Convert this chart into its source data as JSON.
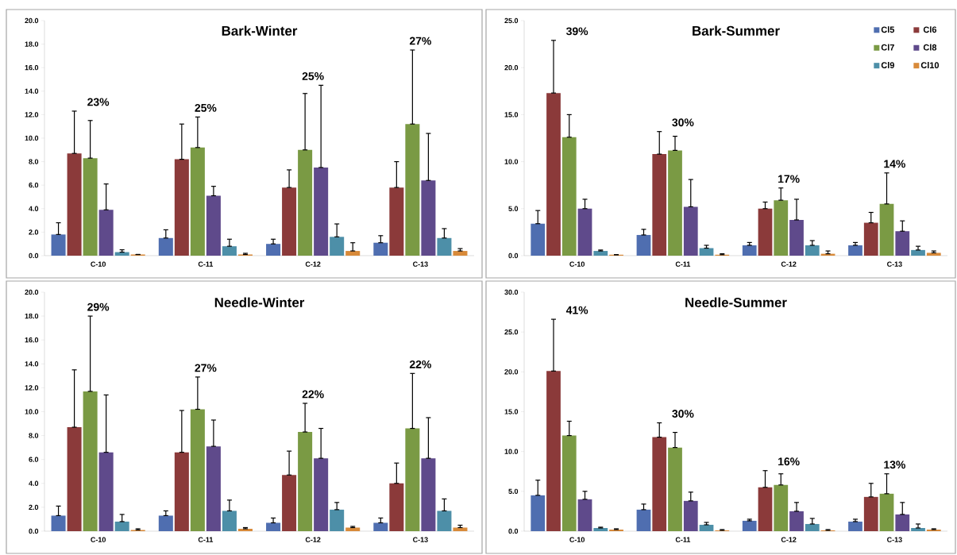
{
  "chart_data": [
    {
      "type": "bar",
      "title": "Bark-Winter",
      "categories": [
        "C-10",
        "C-11",
        "C-12",
        "C-13"
      ],
      "series": [
        {
          "color": "#4f6eb0",
          "values": [
            1.8,
            1.5,
            1.0,
            1.1
          ],
          "errors": [
            [
              1.8,
              2.8
            ],
            [
              1.5,
              2.2
            ],
            [
              1.0,
              1.4
            ],
            [
              1.1,
              1.7
            ]
          ]
        },
        {
          "color": "#8b3a3a",
          "values": [
            8.7,
            8.2,
            5.8,
            5.8
          ],
          "errors": [
            [
              8.7,
              12.3
            ],
            [
              8.2,
              11.2
            ],
            [
              5.8,
              7.3
            ],
            [
              5.8,
              8.0
            ]
          ]
        },
        {
          "color": "#7a9a44",
          "values": [
            8.3,
            9.2,
            9.0,
            11.2
          ],
          "errors": [
            [
              8.3,
              11.5
            ],
            [
              9.2,
              11.8
            ],
            [
              9.0,
              13.8
            ],
            [
              11.2,
              17.5
            ]
          ]
        },
        {
          "color": "#5f4a8b",
          "values": [
            3.9,
            5.1,
            7.5,
            6.4
          ],
          "errors": [
            [
              3.9,
              6.1
            ],
            [
              5.1,
              5.9
            ],
            [
              7.5,
              14.5
            ],
            [
              6.4,
              10.4
            ]
          ]
        },
        {
          "color": "#4d8fa8",
          "values": [
            0.3,
            0.8,
            1.6,
            1.5
          ],
          "errors": [
            [
              0.3,
              0.5
            ],
            [
              0.8,
              1.4
            ],
            [
              1.6,
              2.7
            ],
            [
              1.5,
              2.3
            ]
          ]
        },
        {
          "color": "#d88a3a",
          "values": [
            0.1,
            0.1,
            0.4,
            0.4
          ],
          "errors": [
            [
              0.1,
              0.1
            ],
            [
              0.1,
              0.2
            ],
            [
              0.4,
              1.1
            ],
            [
              0.4,
              0.6
            ]
          ]
        }
      ],
      "ylim": [
        0,
        20
      ],
      "yticks": [
        {
          "value": 0,
          "label": "0.0"
        },
        {
          "value": 2,
          "label": "2.0"
        },
        {
          "value": 4,
          "label": "4.0"
        },
        {
          "value": 6,
          "label": "6.0"
        },
        {
          "value": 8,
          "label": "8.0"
        },
        {
          "value": 10,
          "label": "10.0"
        },
        {
          "value": 12,
          "label": "12.0"
        },
        {
          "value": 14,
          "label": "14.0"
        },
        {
          "value": 16,
          "label": "16.0"
        },
        {
          "value": 18,
          "label": "18.0"
        },
        {
          "value": 20,
          "label": "20.0"
        }
      ],
      "annotations": [
        "23%",
        "25%",
        "25%",
        "27%"
      ],
      "grid": false,
      "legend": false
    },
    {
      "type": "bar",
      "title": "Bark-Summer",
      "categories": [
        "C-10",
        "C-11",
        "C-12",
        "C-13"
      ],
      "series": [
        {
          "name": "Cl5",
          "color": "#4f6eb0",
          "values": [
            3.4,
            2.2,
            1.1,
            1.1
          ],
          "errors": [
            [
              3.4,
              4.8
            ],
            [
              2.2,
              2.8
            ],
            [
              1.1,
              1.4
            ],
            [
              1.1,
              1.4
            ]
          ]
        },
        {
          "name": "Cl6",
          "color": "#8b3a3a",
          "values": [
            17.3,
            10.8,
            5.0,
            3.5
          ],
          "errors": [
            [
              17.3,
              22.9
            ],
            [
              10.8,
              13.2
            ],
            [
              5.0,
              5.7
            ],
            [
              3.5,
              4.6
            ]
          ]
        },
        {
          "name": "Cl7",
          "color": "#7a9a44",
          "values": [
            12.6,
            11.2,
            5.9,
            5.5
          ],
          "errors": [
            [
              12.6,
              15.0
            ],
            [
              11.2,
              12.7
            ],
            [
              5.9,
              7.2
            ],
            [
              5.5,
              8.8
            ]
          ]
        },
        {
          "name": "Cl8",
          "color": "#5f4a8b",
          "values": [
            5.0,
            5.2,
            3.8,
            2.6
          ],
          "errors": [
            [
              5.0,
              6.0
            ],
            [
              5.2,
              8.1
            ],
            [
              3.8,
              6.0
            ],
            [
              2.6,
              3.7
            ]
          ]
        },
        {
          "name": "Cl9",
          "color": "#4d8fa8",
          "values": [
            0.5,
            0.8,
            1.1,
            0.6
          ],
          "errors": [
            [
              0.5,
              0.6
            ],
            [
              0.8,
              1.1
            ],
            [
              1.1,
              1.6
            ],
            [
              0.6,
              1.0
            ]
          ]
        },
        {
          "name": "Cl10",
          "color": "#d88a3a",
          "values": [
            0.1,
            0.1,
            0.2,
            0.3
          ],
          "errors": [
            [
              0.1,
              0.1
            ],
            [
              0.1,
              0.2
            ],
            [
              0.2,
              0.5
            ],
            [
              0.3,
              0.5
            ]
          ]
        }
      ],
      "ylim": [
        0,
        25
      ],
      "yticks": [
        {
          "value": 0,
          "label": "0.0"
        },
        {
          "value": 5,
          "label": "5.0"
        },
        {
          "value": 10,
          "label": "10.0"
        },
        {
          "value": 15,
          "label": "15.0"
        },
        {
          "value": 20,
          "label": "20.0"
        },
        {
          "value": 25,
          "label": "25.0"
        }
      ],
      "annotations": [
        "39%",
        "30%",
        "17%",
        "14%"
      ],
      "grid": false,
      "legend": "top right"
    },
    {
      "type": "bar",
      "title": "Needle-Winter",
      "categories": [
        "C-10",
        "C-11",
        "C-12",
        "C-13"
      ],
      "series": [
        {
          "color": "#4f6eb0",
          "values": [
            1.3,
            1.3,
            0.7,
            0.7
          ],
          "errors": [
            [
              1.3,
              2.1
            ],
            [
              1.3,
              1.7
            ],
            [
              0.7,
              1.1
            ],
            [
              0.7,
              1.1
            ]
          ]
        },
        {
          "color": "#8b3a3a",
          "values": [
            8.7,
            6.6,
            4.7,
            4.0
          ],
          "errors": [
            [
              8.7,
              13.5
            ],
            [
              6.6,
              10.1
            ],
            [
              4.7,
              6.7
            ],
            [
              4.0,
              5.7
            ]
          ]
        },
        {
          "color": "#7a9a44",
          "values": [
            11.7,
            10.2,
            8.3,
            8.6
          ],
          "errors": [
            [
              11.7,
              18.0
            ],
            [
              10.2,
              12.9
            ],
            [
              8.3,
              10.7
            ],
            [
              8.6,
              13.2
            ]
          ]
        },
        {
          "color": "#5f4a8b",
          "values": [
            6.6,
            7.1,
            6.1,
            6.1
          ],
          "errors": [
            [
              6.6,
              11.4
            ],
            [
              7.1,
              9.3
            ],
            [
              6.1,
              8.6
            ],
            [
              6.1,
              9.5
            ]
          ]
        },
        {
          "color": "#4d8fa8",
          "values": [
            0.8,
            1.7,
            1.8,
            1.7
          ],
          "errors": [
            [
              0.8,
              1.4
            ],
            [
              1.7,
              2.6
            ],
            [
              1.8,
              2.4
            ],
            [
              1.7,
              2.7
            ]
          ]
        },
        {
          "color": "#d88a3a",
          "values": [
            0.1,
            0.2,
            0.3,
            0.3
          ],
          "errors": [
            [
              0.1,
              0.2
            ],
            [
              0.2,
              0.3
            ],
            [
              0.3,
              0.4
            ],
            [
              0.3,
              0.5
            ]
          ]
        }
      ],
      "ylim": [
        0,
        20
      ],
      "yticks": [
        {
          "value": 0,
          "label": "0.0"
        },
        {
          "value": 2,
          "label": "2.0"
        },
        {
          "value": 4,
          "label": "4.0"
        },
        {
          "value": 6,
          "label": "6.0"
        },
        {
          "value": 8,
          "label": "8.0"
        },
        {
          "value": 10,
          "label": "10.0"
        },
        {
          "value": 12,
          "label": "12.0"
        },
        {
          "value": 14,
          "label": "14.0"
        },
        {
          "value": 16,
          "label": "16.0"
        },
        {
          "value": 18,
          "label": "18.0"
        },
        {
          "value": 20,
          "label": "20.0"
        }
      ],
      "annotations": [
        "29%",
        "27%",
        "22%",
        "22%"
      ],
      "grid": false,
      "legend": false
    },
    {
      "type": "bar",
      "title": "Needle-Summer",
      "categories": [
        "C-10",
        "C-11",
        "C-12",
        "C-13"
      ],
      "series": [
        {
          "color": "#4f6eb0",
          "values": [
            4.5,
            2.7,
            1.3,
            1.2
          ],
          "errors": [
            [
              4.5,
              6.4
            ],
            [
              2.7,
              3.4
            ],
            [
              1.3,
              1.5
            ],
            [
              1.2,
              1.5
            ]
          ]
        },
        {
          "color": "#8b3a3a",
          "values": [
            20.1,
            11.8,
            5.5,
            4.3
          ],
          "errors": [
            [
              20.1,
              26.6
            ],
            [
              11.8,
              13.6
            ],
            [
              5.5,
              7.6
            ],
            [
              4.3,
              6.0
            ]
          ]
        },
        {
          "color": "#7a9a44",
          "values": [
            12.0,
            10.5,
            5.8,
            4.7
          ],
          "errors": [
            [
              12.0,
              13.8
            ],
            [
              10.5,
              12.4
            ],
            [
              5.8,
              7.2
            ],
            [
              4.7,
              7.2
            ]
          ]
        },
        {
          "color": "#5f4a8b",
          "values": [
            4.0,
            3.8,
            2.5,
            2.1
          ],
          "errors": [
            [
              4.0,
              5.0
            ],
            [
              3.8,
              4.9
            ],
            [
              2.5,
              3.6
            ],
            [
              2.1,
              3.6
            ]
          ]
        },
        {
          "color": "#4d8fa8",
          "values": [
            0.4,
            0.8,
            0.9,
            0.4
          ],
          "errors": [
            [
              0.4,
              0.5
            ],
            [
              0.8,
              1.1
            ],
            [
              0.9,
              1.6
            ],
            [
              0.4,
              0.9
            ]
          ]
        },
        {
          "color": "#d88a3a",
          "values": [
            0.2,
            0.1,
            0.1,
            0.2
          ],
          "errors": [
            [
              0.2,
              0.3
            ],
            [
              0.1,
              0.2
            ],
            [
              0.1,
              0.2
            ],
            [
              0.2,
              0.3
            ]
          ]
        }
      ],
      "ylim": [
        0,
        30
      ],
      "yticks": [
        {
          "value": 0,
          "label": "0.0"
        },
        {
          "value": 5,
          "label": "5.0"
        },
        {
          "value": 10,
          "label": "10.0"
        },
        {
          "value": 15,
          "label": "15.0"
        },
        {
          "value": 20,
          "label": "20.0"
        },
        {
          "value": 25,
          "label": "25.0"
        },
        {
          "value": 30,
          "label": "30.0"
        }
      ],
      "annotations": [
        "41%",
        "30%",
        "16%",
        "13%"
      ],
      "grid": false,
      "legend": false
    }
  ]
}
